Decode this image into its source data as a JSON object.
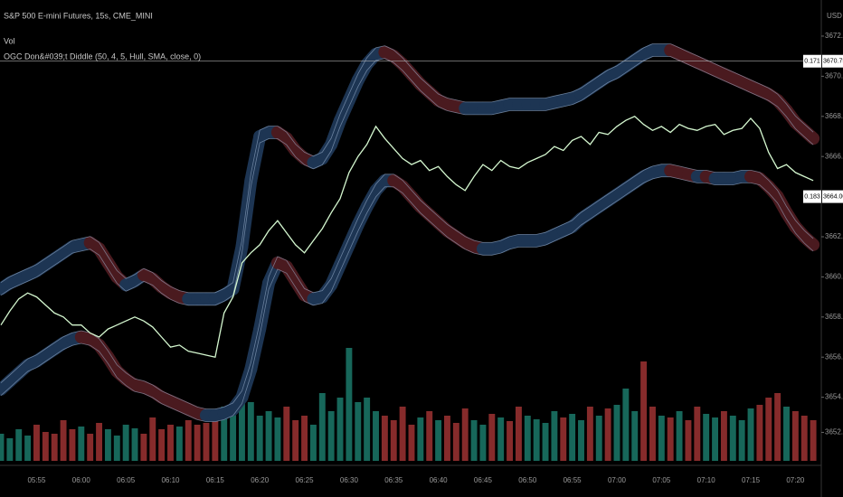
{
  "chart_data": {
    "type": "line",
    "title": "S&P 500 E-mini Futures, 15s, CME_MINI",
    "indicators": [
      "Vol",
      "OGC Don&#039;t Diddle (50, 4, 5, Hull, SMA, close, 0)"
    ],
    "currency": "USD",
    "categories": [
      null,
      null,
      null,
      null,
      "05:55",
      null,
      null,
      null,
      null,
      "06:00",
      null,
      null,
      null,
      null,
      "06:05",
      null,
      null,
      null,
      null,
      "06:10",
      null,
      null,
      null,
      null,
      "06:15",
      null,
      null,
      null,
      null,
      "06:20",
      null,
      null,
      null,
      null,
      "06:25",
      null,
      null,
      null,
      null,
      "06:30",
      null,
      null,
      null,
      null,
      "06:35",
      null,
      null,
      null,
      null,
      "06:40",
      null,
      null,
      null,
      null,
      "06:45",
      null,
      null,
      null,
      null,
      "06:50",
      null,
      null,
      null,
      null,
      "06:55",
      null,
      null,
      null,
      null,
      "07:00",
      null,
      null,
      null,
      null,
      "07:05",
      null,
      null,
      null,
      null,
      "07:10",
      null,
      null,
      null,
      null,
      "07:15",
      null,
      null,
      null,
      null,
      "07:20",
      null,
      null
    ],
    "series": [
      {
        "color": "#d4f7cf",
        "values": [
          3657.6,
          3658.3,
          3658.9,
          3659.2,
          3659.0,
          3658.6,
          3658.2,
          3658.0,
          3657.6,
          3657.6,
          3657.2,
          3657.0,
          3657.4,
          3657.6,
          3657.8,
          3658.0,
          3657.8,
          3657.5,
          3657.0,
          3656.5,
          3656.6,
          3656.3,
          3656.2,
          3656.1,
          3656.0,
          3658.2,
          3659.0,
          3660.7,
          3661.2,
          3661.6,
          3662.3,
          3662.8,
          3662.2,
          3661.6,
          3661.2,
          3661.8,
          3662.4,
          3663.2,
          3663.9,
          3665.2,
          3666.0,
          3666.6,
          3667.5,
          3666.9,
          3666.4,
          3665.9,
          3665.6,
          3665.8,
          3665.3,
          3665.5,
          3665.0,
          3664.6,
          3664.3,
          3665.0,
          3665.6,
          3665.3,
          3665.8,
          3665.5,
          3665.4,
          3665.7,
          3665.9,
          3666.1,
          3666.5,
          3666.3,
          3666.8,
          3667.0,
          3666.6,
          3667.2,
          3667.1,
          3667.5,
          3667.8,
          3668.0,
          3667.6,
          3667.3,
          3667.5,
          3667.2,
          3667.6,
          3667.4,
          3667.3,
          3667.5,
          3667.6,
          3667.1,
          3667.3,
          3667.4,
          3667.9,
          3667.4,
          3666.2,
          3665.4,
          3665.6,
          3665.2,
          3665.0,
          3664.8
        ]
      }
    ],
    "bands": {
      "rising_color": "#1d3553",
      "falling_color": "#4a1a1f",
      "edge_color": "#a9bfdc",
      "upper": [
        3659.4,
        3659.7,
        3659.9,
        3660.1,
        3660.3,
        3660.6,
        3660.9,
        3661.2,
        3661.5,
        3661.6,
        3661.7,
        3661.4,
        3660.7,
        3660.0,
        3659.6,
        3659.8,
        3660.1,
        3659.9,
        3659.5,
        3659.2,
        3659.0,
        3658.9,
        3658.9,
        3658.9,
        3658.9,
        3659.1,
        3659.4,
        3661.5,
        3664.8,
        3667.0,
        3667.2,
        3667.2,
        3666.9,
        3666.3,
        3665.9,
        3665.7,
        3665.9,
        3666.6,
        3667.8,
        3668.8,
        3669.8,
        3670.6,
        3671.1,
        3671.2,
        3671.0,
        3670.6,
        3670.1,
        3669.6,
        3669.2,
        3668.8,
        3668.6,
        3668.5,
        3668.4,
        3668.4,
        3668.4,
        3668.4,
        3668.5,
        3668.6,
        3668.6,
        3668.6,
        3668.6,
        3668.6,
        3668.7,
        3668.8,
        3668.9,
        3669.1,
        3669.4,
        3669.7,
        3670.0,
        3670.2,
        3670.5,
        3670.8,
        3671.1,
        3671.3,
        3671.3,
        3671.3,
        3671.1,
        3670.9,
        3670.7,
        3670.5,
        3670.3,
        3670.1,
        3669.9,
        3669.7,
        3669.5,
        3669.3,
        3669.1,
        3668.8,
        3668.3,
        3667.7,
        3667.3,
        3666.9
      ],
      "lower": [
        3654.4,
        3654.8,
        3655.2,
        3655.6,
        3655.8,
        3656.1,
        3656.4,
        3656.7,
        3656.9,
        3657.0,
        3656.9,
        3656.6,
        3656.0,
        3655.3,
        3654.9,
        3654.6,
        3654.5,
        3654.3,
        3654.0,
        3653.8,
        3653.6,
        3653.4,
        3653.2,
        3653.1,
        3653.1,
        3653.2,
        3653.4,
        3654.0,
        3655.4,
        3657.4,
        3659.7,
        3660.7,
        3660.5,
        3659.8,
        3659.1,
        3658.9,
        3659.0,
        3659.6,
        3660.6,
        3661.6,
        3662.6,
        3663.5,
        3664.3,
        3664.8,
        3664.8,
        3664.5,
        3664.0,
        3663.5,
        3663.1,
        3662.7,
        3662.3,
        3662.0,
        3661.7,
        3661.5,
        3661.4,
        3661.4,
        3661.5,
        3661.7,
        3661.8,
        3661.8,
        3661.8,
        3661.9,
        3662.1,
        3662.3,
        3662.5,
        3662.9,
        3663.2,
        3663.5,
        3663.8,
        3664.1,
        3664.4,
        3664.7,
        3665.0,
        3665.2,
        3665.3,
        3665.3,
        3665.2,
        3665.1,
        3665.0,
        3665.0,
        3664.9,
        3664.9,
        3664.9,
        3665.0,
        3665.0,
        3664.9,
        3664.5,
        3664.0,
        3663.2,
        3662.5,
        3662.0,
        3661.6
      ]
    },
    "volume": {
      "axis": "y2",
      "up_color": "#1f8a78",
      "down_color": "#b33a3a",
      "values": [
        30,
        25,
        35,
        28,
        40,
        32,
        30,
        45,
        35,
        38,
        30,
        42,
        35,
        28,
        40,
        36,
        30,
        48,
        35,
        40,
        38,
        45,
        40,
        42,
        50,
        60,
        55,
        80,
        65,
        50,
        55,
        48,
        60,
        45,
        50,
        40,
        75,
        55,
        70,
        125,
        65,
        70,
        55,
        50,
        45,
        60,
        40,
        48,
        55,
        45,
        50,
        42,
        58,
        45,
        40,
        52,
        48,
        44,
        60,
        50,
        46,
        42,
        55,
        48,
        52,
        45,
        60,
        50,
        58,
        62,
        80,
        55,
        110,
        60,
        50,
        48,
        55,
        45,
        60,
        52,
        48,
        55,
        50,
        45,
        58,
        62,
        70,
        75,
        60,
        55,
        50,
        45
      ]
    },
    "ylim": [
      3650.83,
      3673.8
    ],
    "y2lim": [
      0,
      510
    ],
    "yticks": [
      {
        "value": 3672,
        "label": "3672.00"
      },
      {
        "value": 3670,
        "label": "3670.00"
      },
      {
        "value": 3668,
        "label": "3668.00"
      },
      {
        "value": 3666,
        "label": "3666.00"
      },
      {
        "value": 3662,
        "label": "3662.00"
      },
      {
        "value": 3660,
        "label": "3660.00"
      },
      {
        "value": 3658,
        "label": "3658.00"
      },
      {
        "value": 3656,
        "label": "3656.00"
      },
      {
        "value": 3654,
        "label": "3654.00"
      },
      {
        "value": 3652.25,
        "label": "3652.25"
      }
    ],
    "markers": [
      {
        "tag": "0.171",
        "value": 3670.75,
        "label": "3670.75",
        "line": true
      },
      {
        "tag": "0.183",
        "value": 3664,
        "label": "3664.00",
        "line": false
      }
    ],
    "grid": false
  }
}
